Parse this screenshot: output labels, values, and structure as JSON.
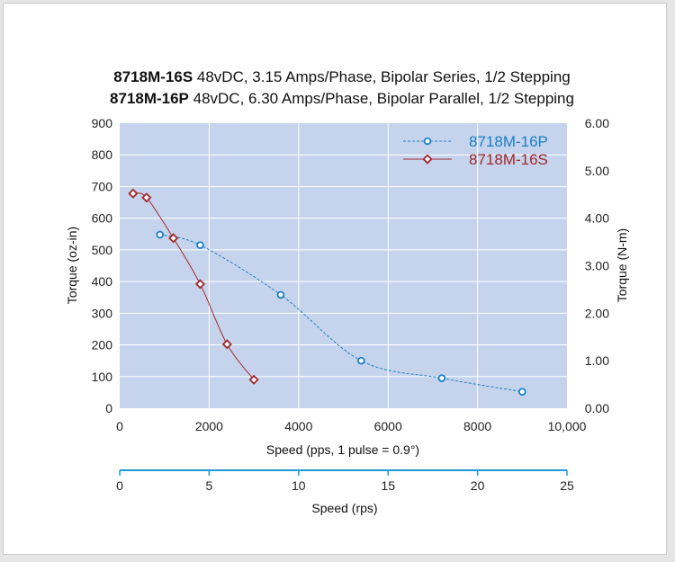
{
  "chart_data": {
    "type": "line",
    "title_lines": [
      {
        "model": "8718M-16S",
        "rest": " 48vDC, 3.15 Amps/Phase, Bipolar Series, 1/2 Stepping"
      },
      {
        "model": "8718M-16P",
        "rest": " 48vDC, 6.30 Amps/Phase, Bipolar Parallel, 1/2 Stepping"
      }
    ],
    "xlabel": "Speed (pps, 1 pulse = 0.9°)",
    "xlabel2": "Speed (rps)",
    "ylabel": "Torque (oz-in)",
    "ylabel2": "Torque (N-m)",
    "xlim": [
      0,
      10000
    ],
    "ylim": [
      0,
      900
    ],
    "x2lim": [
      0,
      25
    ],
    "y2lim": [
      0,
      6
    ],
    "x_ticks": [
      "0",
      "2000",
      "4000",
      "6000",
      "8000",
      "10,000"
    ],
    "x_tick_values": [
      0,
      2000,
      4000,
      6000,
      8000,
      10000
    ],
    "y_ticks": [
      0,
      100,
      200,
      300,
      400,
      500,
      600,
      700,
      800,
      900
    ],
    "y2_ticks": [
      "0.00",
      "1.00",
      "2.00",
      "3.00",
      "4.00",
      "5.00",
      "6.00"
    ],
    "x2_ticks": [
      0,
      5,
      10,
      15,
      20,
      25
    ],
    "grid": true,
    "legend_position": "top-right",
    "colors": {
      "plot_bg": "#c5d4ec",
      "grid": "#ffffff",
      "secondary_axis": "#1b9ad6",
      "series_p": "#1a7fc4",
      "series_s": "#a3272b"
    },
    "series": [
      {
        "name": "8718M-16P",
        "style": "dashed-circle",
        "x": [
          900,
          1800,
          3600,
          5400,
          7200,
          9000
        ],
        "y": [
          548,
          515,
          358,
          150,
          95,
          52
        ]
      },
      {
        "name": "8718M-16S",
        "style": "solid-diamond",
        "x": [
          300,
          600,
          1200,
          1800,
          2400,
          3000
        ],
        "y": [
          678,
          665,
          537,
          392,
          202,
          90
        ]
      }
    ]
  }
}
